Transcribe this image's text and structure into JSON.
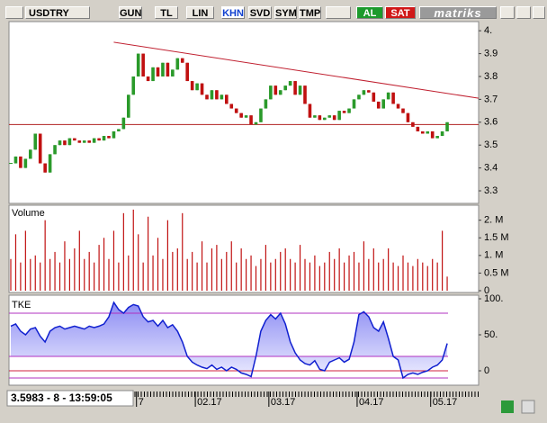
{
  "toolbar": {
    "symbol": "USDTRY",
    "buttons": [
      "GUN",
      "TL",
      "LIN",
      "KHN",
      "SVD",
      "SYM",
      "TMP"
    ],
    "active_button": 3,
    "buy": "AL",
    "sell": "SAT",
    "brand": "matriks"
  },
  "price_panel": {
    "ylim": [
      3.245,
      4.04
    ],
    "yticks": [
      {
        "value": 4,
        "label": "4."
      },
      3.9,
      3.8,
      3.7,
      3.6,
      3.5,
      3.4,
      3.3
    ],
    "closes": [
      3.42,
      3.45,
      3.4,
      3.44,
      3.48,
      3.55,
      3.42,
      3.38,
      3.46,
      3.5,
      3.52,
      3.5,
      3.53,
      3.52,
      3.51,
      3.52,
      3.51,
      3.53,
      3.52,
      3.54,
      3.53,
      3.56,
      3.57,
      3.62,
      3.72,
      3.8,
      3.9,
      3.8,
      3.78,
      3.84,
      3.8,
      3.86,
      3.8,
      3.83,
      3.88,
      3.86,
      3.78,
      3.74,
      3.77,
      3.72,
      3.7,
      3.74,
      3.7,
      3.72,
      3.68,
      3.66,
      3.64,
      3.62,
      3.63,
      3.59,
      3.6,
      3.66,
      3.7,
      3.76,
      3.72,
      3.74,
      3.76,
      3.78,
      3.72,
      3.76,
      3.68,
      3.62,
      3.63,
      3.61,
      3.62,
      3.63,
      3.61,
      3.65,
      3.64,
      3.66,
      3.7,
      3.72,
      3.74,
      3.73,
      3.69,
      3.66,
      3.7,
      3.73,
      3.68,
      3.66,
      3.64,
      3.6,
      3.58,
      3.56,
      3.55,
      3.56,
      3.53,
      3.54,
      3.56,
      3.6
    ],
    "trendline": {
      "from": 3.95,
      "to": 3.705
    },
    "support": 3.59
  },
  "volume_panel": {
    "label": "Volume",
    "ylim": [
      0,
      2.4
    ],
    "yticks": [
      {
        "value": 2,
        "label": "2. M"
      },
      {
        "value": 1.5,
        "label": "1.5 M"
      },
      {
        "value": 1,
        "label": "1. M"
      },
      {
        "value": 0.5,
        "label": "0.5 M"
      },
      0
    ],
    "values": [
      0.9,
      1.6,
      0.8,
      1.7,
      0.9,
      1.0,
      0.8,
      2.0,
      0.9,
      1.1,
      0.8,
      1.4,
      0.9,
      1.2,
      1.7,
      0.9,
      1.1,
      0.8,
      1.3,
      1.5,
      0.9,
      1.7,
      0.8,
      2.2,
      1.0,
      2.3,
      1.6,
      0.8,
      2.1,
      1.0,
      1.5,
      0.9,
      2.0,
      1.1,
      1.2,
      2.2,
      0.9,
      1.1,
      0.8,
      1.4,
      0.8,
      1.2,
      1.3,
      0.9,
      1.1,
      1.4,
      0.8,
      1.2,
      0.9,
      1.0,
      0.7,
      0.9,
      1.3,
      0.8,
      0.9,
      1.1,
      1.2,
      0.9,
      0.8,
      1.3,
      0.9,
      0.8,
      1.0,
      0.7,
      0.8,
      1.1,
      0.9,
      1.2,
      0.8,
      1.0,
      1.1,
      0.8,
      1.4,
      0.9,
      1.2,
      0.8,
      0.9,
      1.2,
      0.8,
      0.7,
      1.0,
      0.8,
      0.7,
      0.9,
      0.8,
      0.7,
      0.9,
      0.8,
      1.7,
      0.4
    ]
  },
  "tke_panel": {
    "label": "TKE",
    "ylim": [
      -20,
      105
    ],
    "yticks": [
      {
        "value": 100,
        "label": "100."
      },
      {
        "value": 50,
        "label": "50."
      },
      0
    ],
    "levels": [
      80,
      20,
      0,
      -10
    ],
    "values": [
      62,
      65,
      55,
      50,
      58,
      60,
      48,
      40,
      55,
      60,
      62,
      58,
      60,
      62,
      60,
      58,
      62,
      60,
      62,
      65,
      75,
      95,
      85,
      80,
      88,
      92,
      90,
      75,
      68,
      70,
      62,
      70,
      60,
      64,
      55,
      40,
      20,
      12,
      8,
      5,
      3,
      8,
      2,
      5,
      0,
      5,
      2,
      -3,
      -5,
      -8,
      20,
      55,
      70,
      78,
      72,
      80,
      65,
      40,
      25,
      15,
      10,
      8,
      14,
      2,
      0,
      12,
      15,
      18,
      12,
      16,
      40,
      78,
      82,
      75,
      60,
      55,
      68,
      45,
      20,
      15,
      -10,
      -5,
      -3,
      -5,
      -2,
      0,
      5,
      8,
      15,
      38
    ]
  },
  "dates": [
    null,
    null,
    null,
    null,
    null,
    null,
    null,
    null,
    null,
    null,
    null,
    null,
    null,
    null,
    null,
    null,
    null,
    null,
    null,
    null,
    null,
    null,
    null,
    null,
    null,
    null,
    "7",
    null,
    null,
    null,
    null,
    null,
    null,
    null,
    null,
    null,
    null,
    null,
    "02.17",
    null,
    null,
    null,
    null,
    null,
    null,
    null,
    null,
    null,
    null,
    null,
    null,
    null,
    null,
    "03.17",
    null,
    null,
    null,
    null,
    null,
    null,
    null,
    null,
    null,
    null,
    null,
    null,
    null,
    null,
    null,
    null,
    null,
    "04.17",
    null,
    null,
    null,
    null,
    null,
    null,
    null,
    null,
    null,
    null,
    null,
    null,
    null,
    null,
    "05.17",
    null,
    null,
    null
  ],
  "status": "3.5983 - 8 - 13:59:05"
}
